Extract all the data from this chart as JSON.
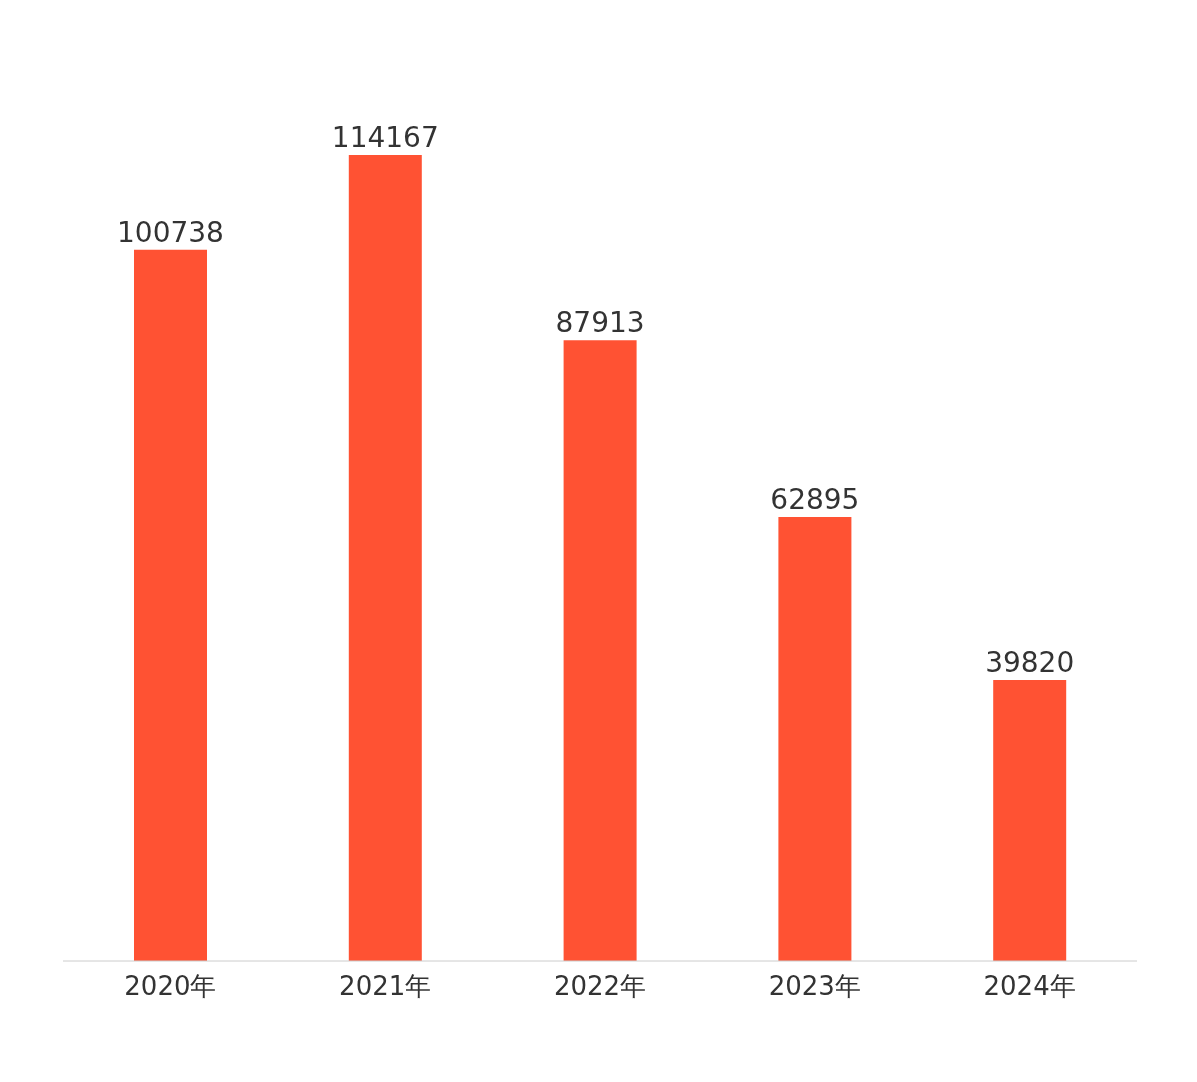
{
  "chart_data": {
    "type": "bar",
    "categories": [
      "2020年",
      "2021年",
      "2022年",
      "2023年",
      "2024年"
    ],
    "values": [
      100738,
      114167,
      87913,
      62895,
      39820
    ],
    "color": "#ff5233",
    "data_labels": true
  }
}
